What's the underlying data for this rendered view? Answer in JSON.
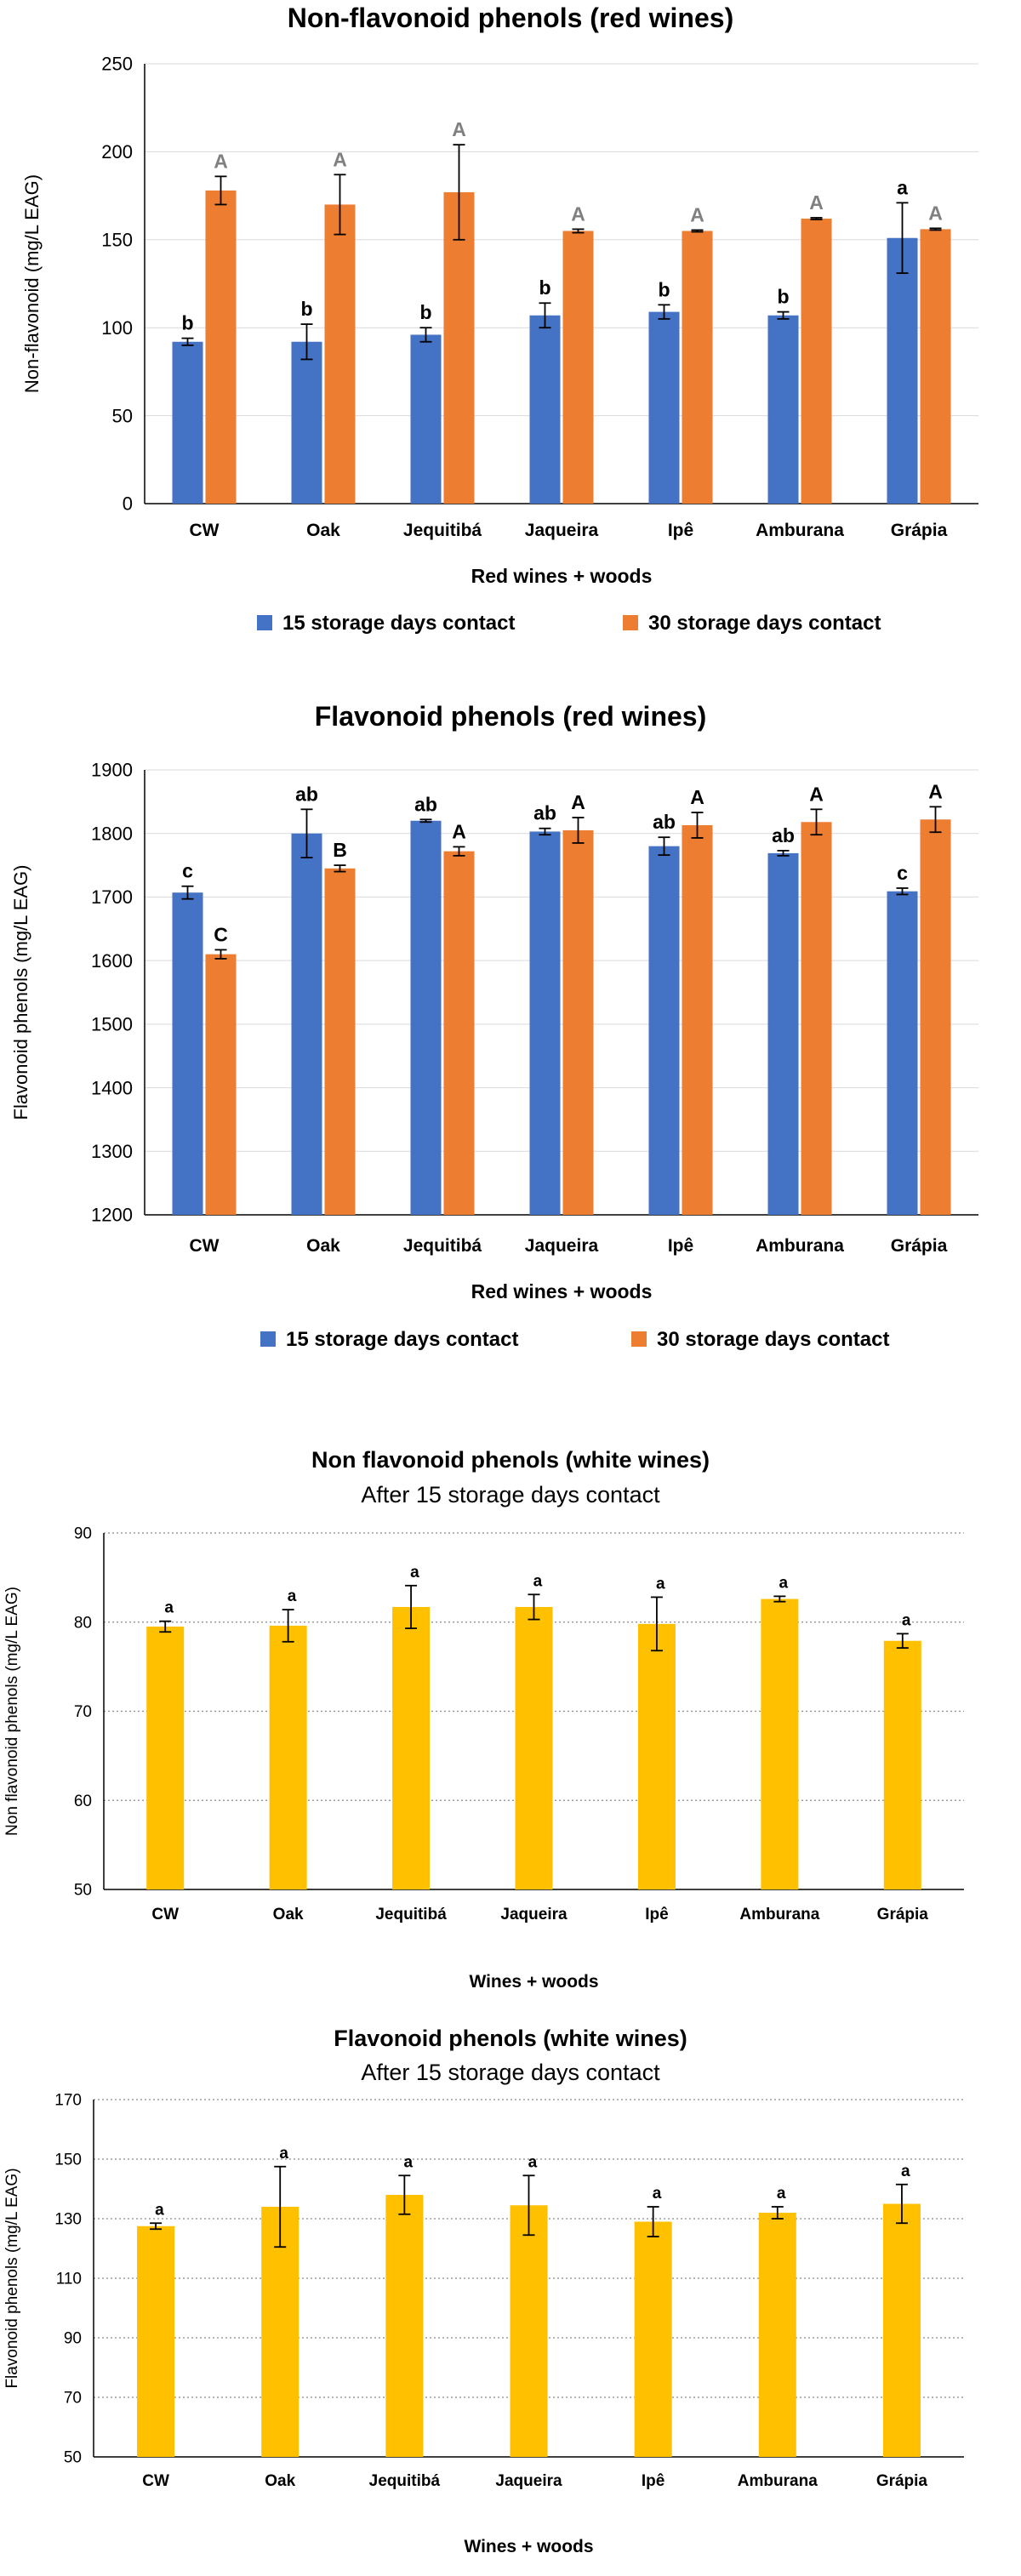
{
  "chart_data": [
    {
      "type": "bar",
      "title": "Non-flavonoid phenols (red wines)",
      "subtitle": "",
      "xlabel": "Red wines + woods",
      "ylabel": "Non-flavonoid (mg/L EAG)",
      "ylim": [
        0,
        250
      ],
      "yticks": [
        0,
        50,
        100,
        150,
        200,
        250
      ],
      "grid": true,
      "legend_position": "bottom",
      "categories": [
        "CW",
        "Oak",
        "Jequitibá",
        "Jaqueira",
        "Ipê",
        "Amburana",
        "Grápia"
      ],
      "series": [
        {
          "name": "15 storage days contact",
          "color": "#4472C4",
          "values": [
            92,
            92,
            96,
            107,
            109,
            107,
            151
          ],
          "errors": [
            2,
            10,
            4,
            7,
            4,
            2,
            20
          ],
          "labels": [
            "b",
            "b",
            "b",
            "b",
            "b",
            "b",
            "a"
          ],
          "label_color": "#000000"
        },
        {
          "name": "30 storage days contact",
          "color": "#ED7D31",
          "values": [
            178,
            170,
            177,
            155,
            155,
            162,
            156
          ],
          "errors": [
            8,
            17,
            27,
            1,
            0.5,
            0.5,
            0.5
          ],
          "labels": [
            "A",
            "A",
            "A",
            "A",
            "A",
            "A",
            "A"
          ],
          "label_color": "#808080"
        }
      ]
    },
    {
      "type": "bar",
      "title": "Flavonoid phenols (red wines)",
      "subtitle": "",
      "xlabel": "Red wines + woods",
      "ylabel": "Flavonoid phenols (mg/L EAG)",
      "ylim": [
        1200,
        1900
      ],
      "yticks": [
        1200,
        1300,
        1400,
        1500,
        1600,
        1700,
        1800,
        1900
      ],
      "grid": true,
      "legend_position": "bottom",
      "categories": [
        "CW",
        "Oak",
        "Jequitibá",
        "Jaqueira",
        "Ipê",
        "Amburana",
        "Grápia"
      ],
      "series": [
        {
          "name": "15 storage days contact",
          "color": "#4472C4",
          "values": [
            1707,
            1800,
            1820,
            1803,
            1780,
            1769,
            1709
          ],
          "errors": [
            10,
            38,
            2,
            5,
            14,
            4,
            5
          ],
          "labels": [
            "c",
            "ab",
            "ab",
            "ab",
            "ab",
            "ab",
            "c"
          ],
          "label_color": "#000000"
        },
        {
          "name": "30 storage days contact",
          "color": "#ED7D31",
          "values": [
            1610,
            1745,
            1772,
            1805,
            1813,
            1818,
            1822
          ],
          "errors": [
            7,
            5,
            7,
            20,
            20,
            20,
            20
          ],
          "labels": [
            "C",
            "B",
            "A",
            "A",
            "A",
            "A",
            "A"
          ],
          "label_color": "#000000"
        }
      ]
    },
    {
      "type": "bar",
      "title": "Non flavonoid phenols (white wines)",
      "subtitle": "After 15 storage days contact",
      "xlabel": "Wines + woods",
      "ylabel": "Non flavonoid phenols (mg/L EAG)",
      "ylim": [
        50,
        90
      ],
      "yticks": [
        50,
        60,
        70,
        80,
        90
      ],
      "grid": true,
      "legend_position": "none",
      "categories": [
        "CW",
        "Oak",
        "Jequitibá",
        "Jaqueira",
        "Ipê",
        "Amburana",
        "Grápia"
      ],
      "series": [
        {
          "name": "15 storage days contact",
          "color": "#FFC000",
          "values": [
            79.5,
            79.6,
            81.7,
            81.7,
            79.8,
            82.6,
            77.9
          ],
          "errors": [
            0.6,
            1.8,
            2.4,
            1.4,
            3.0,
            0.3,
            0.8
          ],
          "labels": [
            "a",
            "a",
            "a",
            "a",
            "a",
            "a",
            "a"
          ],
          "label_color": "#000000"
        }
      ]
    },
    {
      "type": "bar",
      "title": "Flavonoid phenols (white wines)",
      "subtitle": "After 15 storage days contact",
      "xlabel": "Wines + woods",
      "ylabel": "Flavonoid phenols (mg/L EAG)",
      "ylim": [
        50,
        170
      ],
      "yticks": [
        50,
        70,
        90,
        110,
        130,
        150,
        170
      ],
      "grid": true,
      "legend_position": "none",
      "categories": [
        "CW",
        "Oak",
        "Jequitibá",
        "Jaqueira",
        "Ipê",
        "Amburana",
        "Grápia"
      ],
      "series": [
        {
          "name": "15 storage days contact",
          "color": "#FFC000",
          "values": [
            127.5,
            134,
            138,
            134.5,
            129,
            132,
            135
          ],
          "errors": [
            1,
            13.5,
            6.5,
            10,
            5,
            2,
            6.5
          ],
          "labels": [
            "a",
            "a",
            "a",
            "a",
            "a",
            "a",
            "a"
          ],
          "label_color": "#000000"
        }
      ]
    }
  ]
}
